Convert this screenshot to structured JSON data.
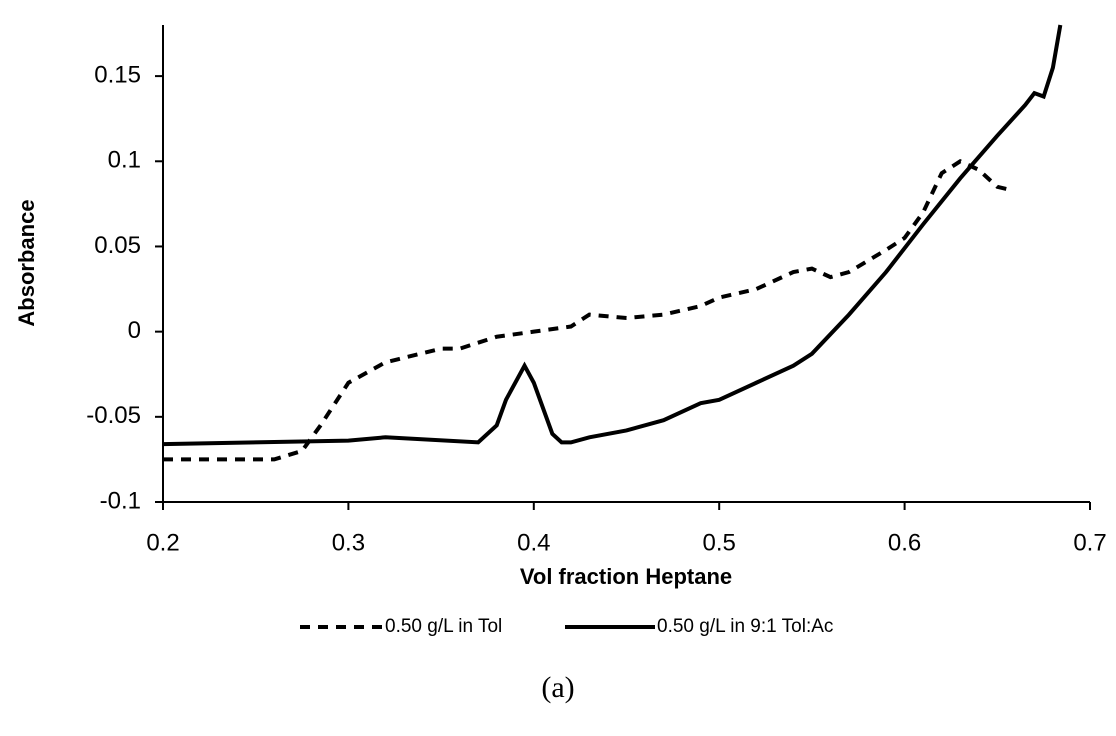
{
  "chart_data": {
    "type": "line",
    "x_label": "Vol fraction Heptane",
    "y_label": "Absorbance",
    "caption": "(a)",
    "xlim": [
      0.2,
      0.7
    ],
    "xticks": [
      0.2,
      0.3,
      0.4,
      0.5,
      0.6,
      0.7
    ],
    "ylim": [
      -0.1,
      0.18
    ],
    "yticks": [
      -0.1,
      -0.05,
      0,
      0.05,
      0.1,
      0.15
    ],
    "grid": false,
    "legend": "bottom",
    "series": [
      {
        "name": "0.50 g/L in Tol",
        "color": "#000000",
        "line_style": "dashed",
        "x": [
          0.2,
          0.26,
          0.275,
          0.285,
          0.3,
          0.32,
          0.35,
          0.36,
          0.38,
          0.4,
          0.42,
          0.43,
          0.45,
          0.47,
          0.49,
          0.5,
          0.52,
          0.54,
          0.55,
          0.56,
          0.57,
          0.59,
          0.6,
          0.61,
          0.62,
          0.63,
          0.64,
          0.65,
          0.658
        ],
        "values": [
          -0.075,
          -0.075,
          -0.07,
          -0.055,
          -0.03,
          -0.018,
          -0.01,
          -0.01,
          -0.003,
          0,
          0.003,
          0.01,
          0.008,
          0.01,
          0.015,
          0.02,
          0.025,
          0.035,
          0.037,
          0.032,
          0.035,
          0.048,
          0.055,
          0.07,
          0.093,
          0.1,
          0.095,
          0.085,
          0.083
        ]
      },
      {
        "name": "0.50 g/L in 9:1 Tol:Ac",
        "color": "#000000",
        "line_style": "solid",
        "x": [
          0.2,
          0.3,
          0.32,
          0.37,
          0.38,
          0.385,
          0.395,
          0.4,
          0.41,
          0.415,
          0.42,
          0.43,
          0.45,
          0.47,
          0.49,
          0.5,
          0.52,
          0.54,
          0.55,
          0.57,
          0.59,
          0.61,
          0.63,
          0.65,
          0.665,
          0.67,
          0.675,
          0.68,
          0.684
        ],
        "values": [
          -0.066,
          -0.064,
          -0.062,
          -0.065,
          -0.055,
          -0.04,
          -0.02,
          -0.03,
          -0.06,
          -0.065,
          -0.065,
          -0.062,
          -0.058,
          -0.052,
          -0.042,
          -0.04,
          -0.03,
          -0.02,
          -0.013,
          0.01,
          0.035,
          0.063,
          0.09,
          0.115,
          0.133,
          0.14,
          0.138,
          0.155,
          0.18
        ]
      }
    ]
  }
}
